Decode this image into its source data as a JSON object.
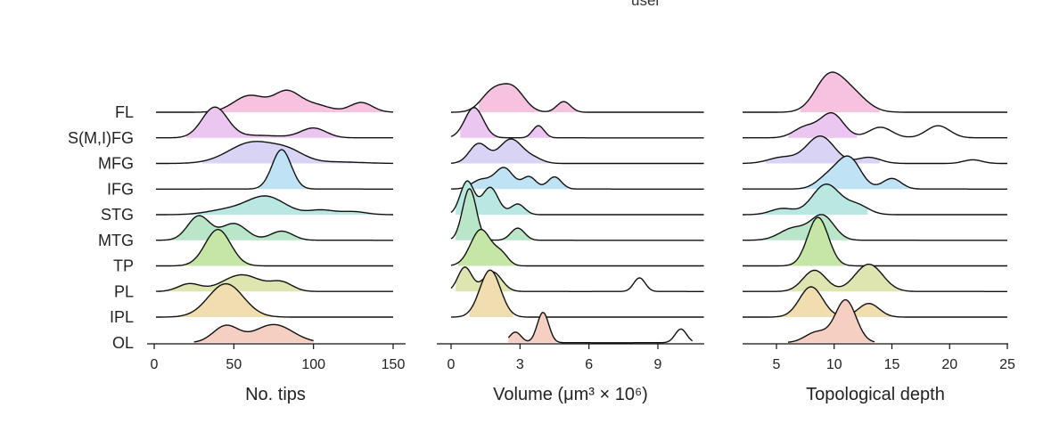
{
  "header_fragment": "usel",
  "regions": [
    "FL",
    "S(M,I)FG",
    "MFG",
    "IFG",
    "STG",
    "MTG",
    "TP",
    "PL",
    "IPL",
    "OL"
  ],
  "colors": [
    "#f6c2df",
    "#ebc6f0",
    "#d9d4f5",
    "#bfe3f5",
    "#b9e7e2",
    "#b9e6c8",
    "#c6e6a7",
    "#dfe5b0",
    "#f0ddb0",
    "#f6cfc3"
  ],
  "chart_data": [
    {
      "type": "ridgeline",
      "xlabel": "No. tips",
      "xlim": [
        0,
        150
      ],
      "xticks": [
        0,
        50,
        100,
        150
      ],
      "series": [
        {
          "name": "FL",
          "range": [
            0,
            150
          ],
          "peaks": [
            [
              60,
              0.55,
              10
            ],
            [
              83,
              0.63,
              8
            ],
            [
              100,
              0.25,
              10
            ],
            [
              130,
              0.32,
              7
            ]
          ],
          "fill": [
            40,
            150
          ]
        },
        {
          "name": "S(M,I)FG",
          "range": [
            0,
            150
          ],
          "peaks": [
            [
              38,
              1.0,
              8
            ],
            [
              65,
              0.08,
              15
            ],
            [
              100,
              0.32,
              8
            ]
          ],
          "fill": [
            20,
            125
          ]
        },
        {
          "name": "MFG",
          "range": [
            0,
            150
          ],
          "peaks": [
            [
              62,
              0.7,
              15
            ],
            [
              85,
              0.3,
              10
            ],
            [
              115,
              0.05,
              15
            ]
          ],
          "fill": [
            30,
            140
          ]
        },
        {
          "name": "IFG",
          "range": [
            0,
            150
          ],
          "peaks": [
            [
              80,
              1.3,
              6
            ]
          ],
          "fill": [
            65,
            100
          ]
        },
        {
          "name": "STG",
          "range": [
            0,
            150
          ],
          "peaks": [
            [
              45,
              0.15,
              12
            ],
            [
              70,
              0.6,
              12
            ],
            [
              105,
              0.15,
              8
            ],
            [
              125,
              0.1,
              8
            ]
          ],
          "fill": [
            20,
            150
          ]
        },
        {
          "name": "MTG",
          "range": [
            0,
            150
          ],
          "peaks": [
            [
              28,
              0.8,
              7
            ],
            [
              50,
              0.55,
              8
            ],
            [
              80,
              0.3,
              7
            ]
          ],
          "fill": [
            5,
            110
          ]
        },
        {
          "name": "TP",
          "range": [
            0,
            150
          ],
          "peaks": [
            [
              40,
              1.2,
              8
            ]
          ],
          "fill": [
            15,
            70
          ]
        },
        {
          "name": "PL",
          "range": [
            0,
            150
          ],
          "peaks": [
            [
              22,
              0.25,
              7
            ],
            [
              55,
              0.55,
              12
            ],
            [
              80,
              0.28,
              7
            ]
          ],
          "fill": [
            5,
            110
          ]
        },
        {
          "name": "IPL",
          "range": [
            0,
            150
          ],
          "peaks": [
            [
              45,
              1.1,
              11
            ]
          ],
          "fill": [
            15,
            75
          ]
        },
        {
          "name": "OL",
          "range": [
            25,
            100
          ],
          "peaks": [
            [
              45,
              0.55,
              8
            ],
            [
              75,
              0.6,
              12
            ]
          ],
          "fill": [
            25,
            100
          ]
        }
      ]
    },
    {
      "type": "ridgeline",
      "xlabel": "Volume (μm³ × 10⁶)",
      "xlim": [
        0,
        11
      ],
      "xticks": [
        0,
        3,
        6,
        9
      ],
      "series": [
        {
          "name": "FL",
          "range": [
            0,
            11
          ],
          "peaks": [
            [
              1.8,
              0.65,
              0.5
            ],
            [
              2.7,
              0.75,
              0.5
            ],
            [
              4.9,
              0.35,
              0.3
            ]
          ],
          "fill": [
            1.2,
            5.5
          ]
        },
        {
          "name": "S(M,I)FG",
          "range": [
            0,
            11
          ],
          "peaks": [
            [
              1.0,
              1.0,
              0.4
            ],
            [
              3.8,
              0.4,
              0.25
            ]
          ],
          "fill": [
            0.4,
            4.3
          ]
        },
        {
          "name": "MFG",
          "range": [
            0,
            11
          ],
          "peaks": [
            [
              1.2,
              0.65,
              0.4
            ],
            [
              2.6,
              0.8,
              0.5
            ],
            [
              3.6,
              0.15,
              0.4
            ]
          ],
          "fill": [
            0.3,
            4.3
          ]
        },
        {
          "name": "IFG",
          "range": [
            0,
            11
          ],
          "peaks": [
            [
              1.3,
              0.3,
              0.4
            ],
            [
              2.3,
              0.7,
              0.4
            ],
            [
              3.4,
              0.4,
              0.3
            ],
            [
              4.5,
              0.4,
              0.3
            ]
          ],
          "fill": [
            0.6,
            5.2
          ]
        },
        {
          "name": "STG",
          "range": [
            0,
            11
          ],
          "peaks": [
            [
              0.7,
              1.1,
              0.3
            ],
            [
              1.7,
              0.9,
              0.35
            ],
            [
              2.9,
              0.35,
              0.3
            ]
          ],
          "fill": [
            0.2,
            3.6
          ]
        },
        {
          "name": "MTG",
          "range": [
            0,
            11
          ],
          "peaks": [
            [
              0.8,
              1.7,
              0.3
            ],
            [
              2.9,
              0.4,
              0.3
            ]
          ],
          "fill": [
            0.2,
            3.6
          ]
        },
        {
          "name": "TP",
          "range": [
            0,
            11
          ],
          "peaks": [
            [
              1.3,
              1.2,
              0.45
            ],
            [
              2.2,
              0.35,
              0.3
            ]
          ],
          "fill": [
            0.3,
            3.0
          ]
        },
        {
          "name": "PL",
          "range": [
            0,
            11
          ],
          "peaks": [
            [
              0.6,
              0.8,
              0.3
            ],
            [
              1.8,
              0.65,
              0.4
            ],
            [
              8.2,
              0.45,
              0.25
            ]
          ],
          "fill": [
            0.2,
            2.8
          ]
        },
        {
          "name": "IPL",
          "range": [
            0,
            11
          ],
          "peaks": [
            [
              1.7,
              1.55,
              0.45
            ]
          ],
          "fill": [
            0.8,
            2.7
          ]
        },
        {
          "name": "OL",
          "range": [
            2.5,
            10.5
          ],
          "peaks": [
            [
              2.8,
              0.35,
              0.25
            ],
            [
              4.0,
              1.0,
              0.25
            ],
            [
              10.0,
              0.45,
              0.25
            ]
          ],
          "fill": [
            2.5,
            4.6
          ]
        }
      ]
    },
    {
      "type": "ridgeline",
      "xlabel": "Topological depth",
      "xlim": [
        2,
        25
      ],
      "xticks": [
        5,
        10,
        15,
        20,
        25
      ],
      "series": [
        {
          "name": "FL",
          "range": [
            2,
            25
          ],
          "peaks": [
            [
              9.5,
              1.1,
              1.2
            ],
            [
              11.5,
              0.6,
              1.3
            ]
          ],
          "fill": [
            7,
            14
          ]
        },
        {
          "name": "S(M,I)FG",
          "range": [
            2,
            25
          ],
          "peaks": [
            [
              7.5,
              0.35,
              1.0
            ],
            [
              9.8,
              0.8,
              1.0
            ],
            [
              14,
              0.35,
              1.0
            ],
            [
              19,
              0.4,
              1.0
            ]
          ],
          "fill": [
            6,
            12
          ]
        },
        {
          "name": "MFG",
          "range": [
            2,
            25
          ],
          "peaks": [
            [
              5.5,
              0.2,
              1.2
            ],
            [
              8.8,
              0.9,
              1.2
            ],
            [
              13,
              0.2,
              1.0
            ],
            [
              22,
              0.12,
              0.8
            ]
          ],
          "fill": [
            4,
            14
          ]
        },
        {
          "name": "IFG",
          "range": [
            2,
            25
          ],
          "peaks": [
            [
              9.5,
              0.4,
              1.0
            ],
            [
              11.3,
              1.0,
              1.0
            ],
            [
              15,
              0.35,
              0.8
            ]
          ],
          "fill": [
            7,
            17
          ]
        },
        {
          "name": "STG",
          "range": [
            2,
            25
          ],
          "peaks": [
            [
              5.5,
              0.2,
              1.0
            ],
            [
              9.3,
              1.0,
              1.2
            ],
            [
              12,
              0.3,
              1.0
            ]
          ],
          "fill": [
            3,
            13
          ]
        },
        {
          "name": "MTG",
          "range": [
            2,
            25
          ],
          "peaks": [
            [
              6.5,
              0.4,
              1.2
            ],
            [
              9.0,
              0.8,
              1.0
            ]
          ],
          "fill": [
            3,
            12
          ]
        },
        {
          "name": "TP",
          "range": [
            2,
            25
          ],
          "peaks": [
            [
              8.6,
              1.6,
              0.9
            ]
          ],
          "fill": [
            6,
            11
          ]
        },
        {
          "name": "PL",
          "range": [
            2,
            25
          ],
          "peaks": [
            [
              8.3,
              0.7,
              1.0
            ],
            [
              13,
              0.9,
              1.2
            ]
          ],
          "fill": [
            5,
            16
          ]
        },
        {
          "name": "IPL",
          "range": [
            2,
            25
          ],
          "peaks": [
            [
              8.0,
              1.0,
              1.0
            ],
            [
              13,
              0.45,
              0.9
            ]
          ],
          "fill": [
            5,
            15
          ]
        },
        {
          "name": "OL",
          "range": [
            6,
            13.5
          ],
          "peaks": [
            [
              8.5,
              0.35,
              1.0
            ],
            [
              11,
              1.4,
              0.9
            ]
          ],
          "fill": [
            6,
            13.5
          ]
        }
      ]
    }
  ]
}
